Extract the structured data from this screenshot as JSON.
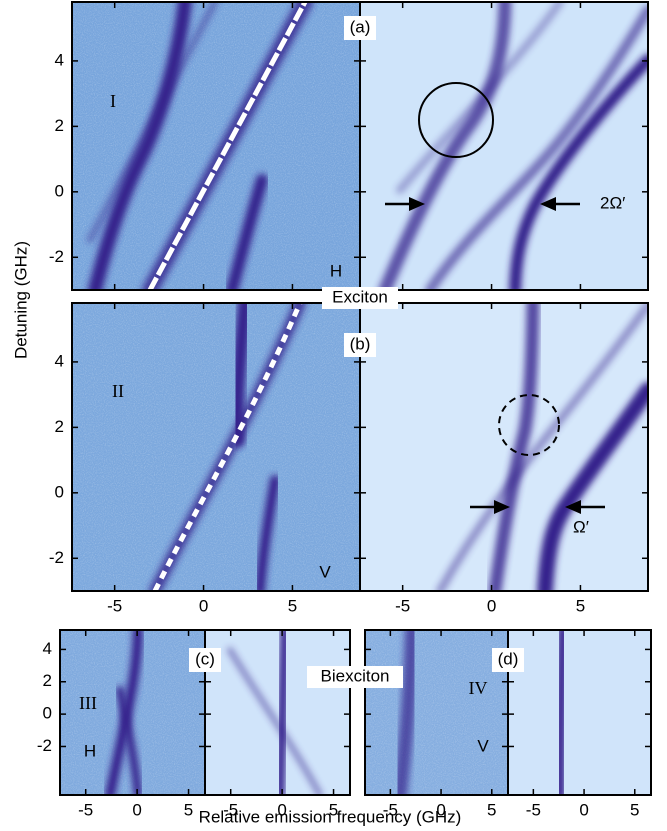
{
  "y_axis_label": "Detuning (GHz)",
  "x_axis_label": "Relative emission frequency (GHz)",
  "exciton_label": "Exciton",
  "biexciton_label": "Biexciton",
  "panels": [
    {
      "label": "(a)",
      "trace_label": "I",
      "polarization": "H",
      "polarization_color": "#e8201c",
      "annotation": "2Ω′",
      "xlim": [
        -7.4,
        8.8
      ],
      "ylim": [
        -3,
        5.8
      ],
      "xticks": [
        -5,
        0,
        5
      ],
      "yticks": [
        -2,
        0,
        2,
        4
      ]
    },
    {
      "label": "(b)",
      "trace_label": "II",
      "polarization": "V",
      "polarization_color": "#1c1ce0",
      "annotation": "Ω′",
      "xlim": [
        -7.4,
        8.8
      ],
      "ylim": [
        -3,
        5.8
      ],
      "xticks": [
        -5,
        0,
        5
      ],
      "yticks": [
        -2,
        0,
        2,
        4
      ]
    },
    {
      "label": "(c)",
      "trace_label": "III",
      "polarization": "H",
      "polarization_color": "#e8201c",
      "xlim": [
        -7.5,
        6.6
      ],
      "ylim": [
        -5,
        5.2
      ],
      "xticks": [
        -5,
        0,
        5
      ],
      "yticks": [
        -2,
        0,
        2,
        4
      ]
    },
    {
      "label": "(d)",
      "trace_label": "IV",
      "polarization": "V",
      "polarization_color": "#1c1ce0",
      "xlim": [
        -7.5,
        6.6
      ],
      "ylim": [
        -5,
        5.2
      ],
      "xticks": [
        -5,
        0,
        5
      ],
      "yticks": [
        -2,
        0,
        2,
        4
      ]
    }
  ]
}
